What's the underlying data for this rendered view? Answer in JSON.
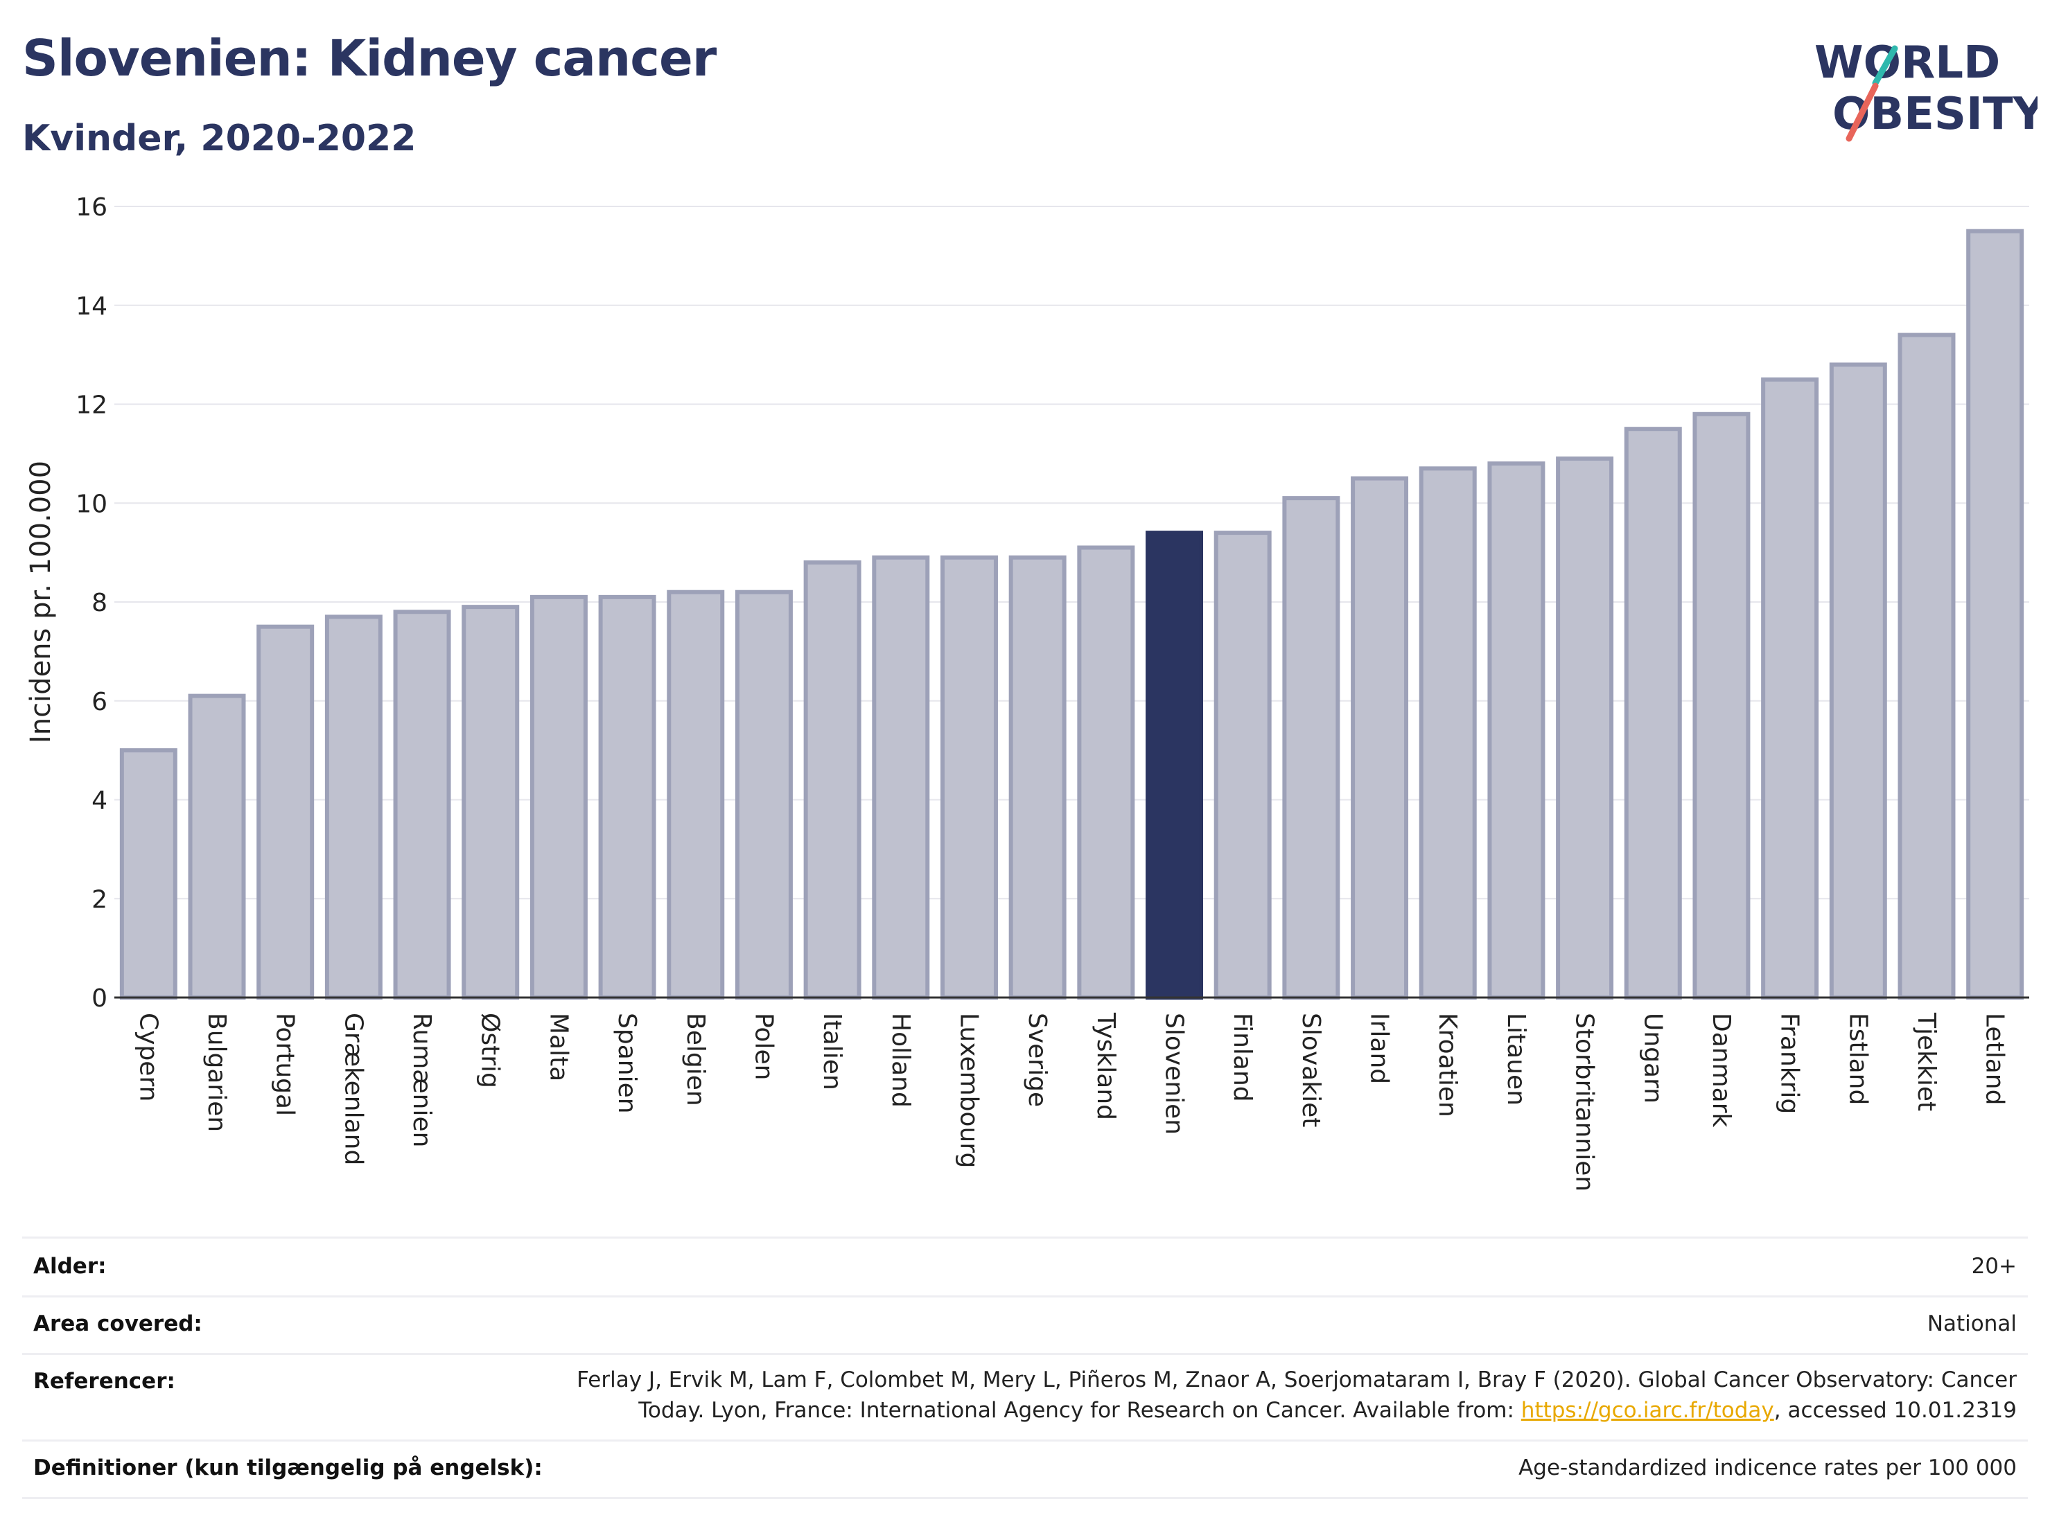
{
  "header": {
    "title": "Slovenien: Kidney cancer",
    "subtitle": "Kvinder, 2020-2022"
  },
  "logo": {
    "line1": "WORLD",
    "line2": "OBESITY",
    "accent_teal": "#2fb8ad",
    "accent_red": "#e8655a",
    "text_color": "#2b3561"
  },
  "chart_data": {
    "type": "bar",
    "ylabel": "Incidens pr. 100.000",
    "ylim": [
      0,
      16
    ],
    "yticks": [
      0,
      2,
      4,
      6,
      8,
      10,
      12,
      14,
      16
    ],
    "grid": true,
    "highlight": "Slovenien",
    "colors": {
      "bar": "#bfc1cf",
      "bar_border": "#9da1b8",
      "highlight": "#2b3561"
    },
    "categories": [
      "Cypern",
      "Bulgarien",
      "Portugal",
      "Grækenland",
      "Rumænien",
      "Østrig",
      "Malta",
      "Spanien",
      "Belgien",
      "Polen",
      "Italien",
      "Holland",
      "Luxembourg",
      "Sverige",
      "Tyskland",
      "Slovenien",
      "Finland",
      "Slovakiet",
      "Irland",
      "Kroatien",
      "Litauen",
      "Storbritannien",
      "Ungarn",
      "Danmark",
      "Frankrig",
      "Estland",
      "Tjekkiet",
      "Letland"
    ],
    "values": [
      5.0,
      6.1,
      7.5,
      7.7,
      7.8,
      7.9,
      8.1,
      8.1,
      8.2,
      8.2,
      8.8,
      8.9,
      8.9,
      8.9,
      9.1,
      9.4,
      9.4,
      10.1,
      10.5,
      10.7,
      10.8,
      10.9,
      11.5,
      11.8,
      12.5,
      12.8,
      13.4,
      15.5
    ]
  },
  "info": {
    "age_label": "Alder:",
    "age_value": "20+",
    "area_label": "Area covered:",
    "area_value": "National",
    "ref_label": "Referencer:",
    "ref_line1": "Ferlay J, Ervik M, Lam F, Colombet M, Mery L, Piñeros M, Znaor A, Soerjomataram I, Bray F (2020). Global Cancer Observatory: Cancer",
    "ref_line2_pre": "Today. Lyon, France: International Agency for Research on Cancer. Available from: ",
    "ref_link": "https://gco.iarc.fr/today",
    "ref_line2_post": ", accessed 10.01.2319",
    "def_label": "Definitioner (kun tilgængelig på engelsk):",
    "def_value": "Age-standardized indicence rates per 100 000"
  }
}
